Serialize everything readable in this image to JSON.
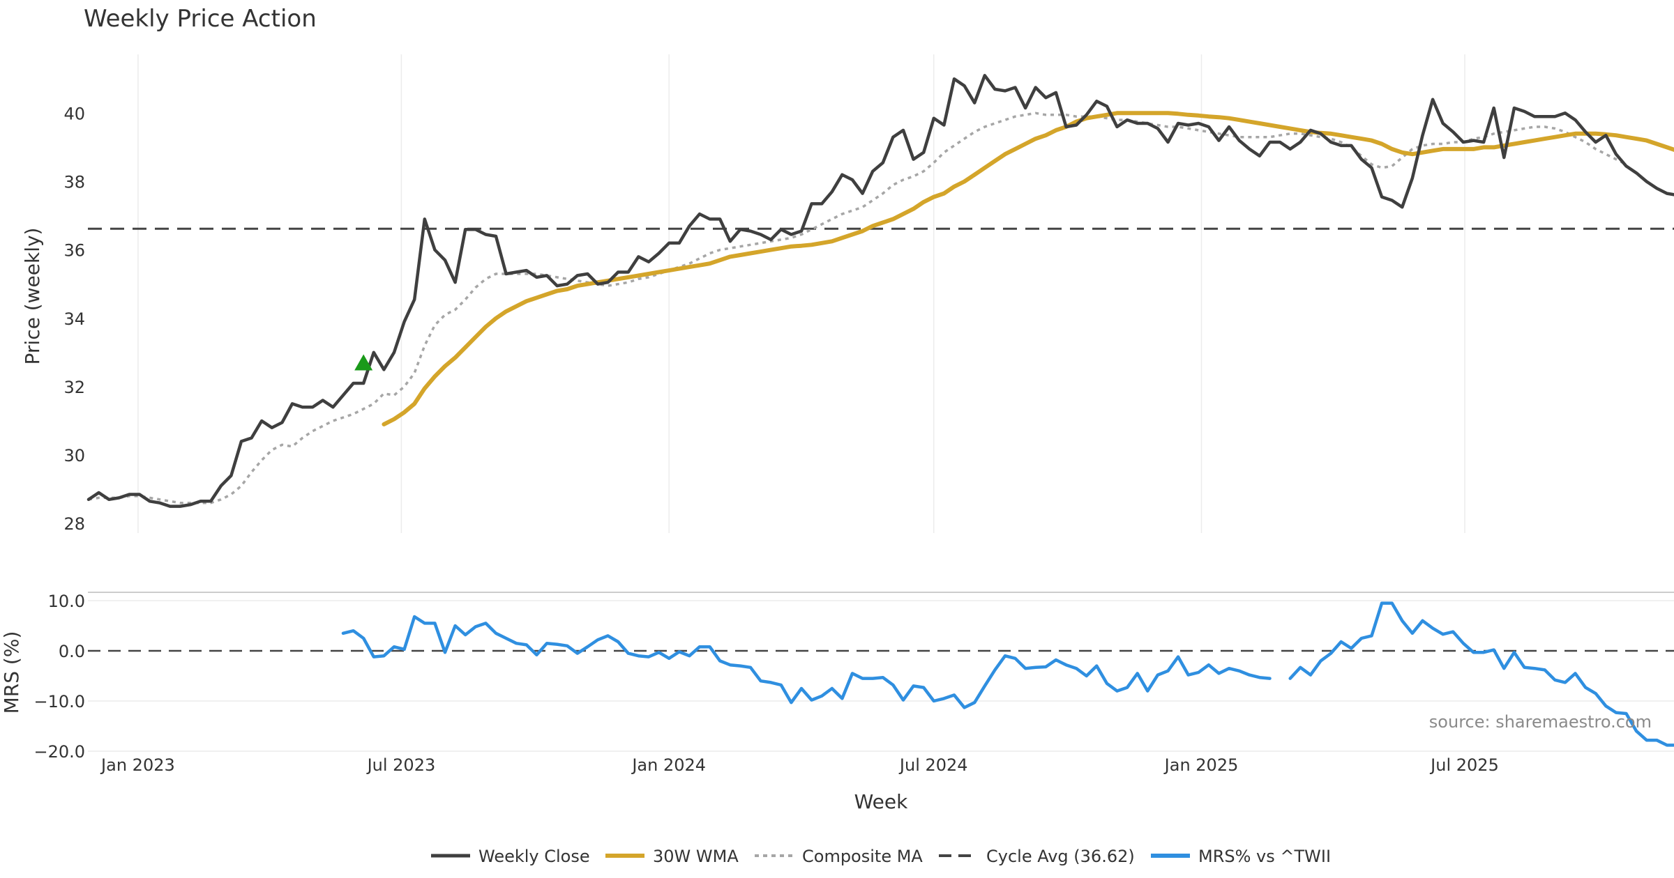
{
  "chart_data": [
    {
      "type": "line",
      "title": "Weekly Price Action",
      "ylabel": "Price (weekly)",
      "xlabel": "",
      "ylim": [
        27.8,
        41.8
      ],
      "yticks": [
        28,
        30,
        32,
        34,
        36,
        38,
        40
      ],
      "x_start": "2022-11-28",
      "grid": "vertical",
      "reference_line": {
        "name": "Cycle Avg (36.62)",
        "value": 36.62
      },
      "marker": {
        "label": "buy-signal",
        "date": "2023-06-05",
        "value": 32.7,
        "color": "#1a9a1a"
      },
      "series": [
        {
          "name": "Weekly Close",
          "color": "#3f3f3f",
          "values": [
            28.7,
            28.9,
            28.7,
            28.75,
            28.85,
            28.85,
            28.65,
            28.6,
            28.5,
            28.5,
            28.55,
            28.65,
            28.65,
            29.1,
            29.4,
            30.4,
            30.5,
            31.0,
            30.8,
            30.95,
            31.5,
            31.4,
            31.4,
            31.6,
            31.4,
            31.75,
            32.1,
            32.1,
            33.0,
            32.5,
            33.0,
            33.9,
            34.55,
            36.9,
            36.0,
            35.7,
            35.05,
            36.6,
            36.6,
            36.45,
            36.4,
            35.3,
            35.35,
            35.4,
            35.2,
            35.25,
            34.95,
            35.0,
            35.25,
            35.3,
            35.0,
            35.05,
            35.35,
            35.35,
            35.8,
            35.65,
            35.9,
            36.2,
            36.2,
            36.7,
            37.05,
            36.9,
            36.9,
            36.25,
            36.6,
            36.55,
            36.45,
            36.3,
            36.6,
            36.45,
            36.55,
            37.35,
            37.35,
            37.7,
            38.2,
            38.05,
            37.65,
            38.3,
            38.55,
            39.3,
            39.5,
            38.65,
            38.85,
            39.85,
            39.65,
            41.0,
            40.8,
            40.3,
            41.1,
            40.7,
            40.65,
            40.75,
            40.15,
            40.75,
            40.45,
            40.6,
            39.6,
            39.65,
            39.95,
            40.35,
            40.2,
            39.6,
            39.8,
            39.7,
            39.7,
            39.55,
            39.15,
            39.7,
            39.65,
            39.7,
            39.6,
            39.2,
            39.6,
            39.2,
            38.95,
            38.75,
            39.15,
            39.15,
            38.95,
            39.15,
            39.5,
            39.4,
            39.15,
            39.05,
            39.05,
            38.65,
            38.4,
            37.55,
            37.45,
            37.25,
            38.1,
            39.35,
            40.4,
            39.7,
            39.45,
            39.15,
            39.2,
            39.15,
            40.15,
            38.7,
            40.15,
            40.05,
            39.9,
            39.9,
            39.9,
            40.0,
            39.8,
            39.45,
            39.15,
            39.35,
            38.8,
            38.45,
            38.25,
            38.0,
            37.8,
            37.65,
            37.6,
            37.55
          ]
        },
        {
          "name": "30W WMA",
          "color": "#d4a52a",
          "start_index": 29,
          "values": [
            30.9,
            31.05,
            31.25,
            31.5,
            31.95,
            32.3,
            32.6,
            32.85,
            33.15,
            33.45,
            33.75,
            34.0,
            34.2,
            34.35,
            34.5,
            34.6,
            34.7,
            34.8,
            34.85,
            34.95,
            35.0,
            35.05,
            35.1,
            35.15,
            35.2,
            35.25,
            35.3,
            35.35,
            35.4,
            35.45,
            35.5,
            35.55,
            35.6,
            35.7,
            35.8,
            35.85,
            35.9,
            35.95,
            36.0,
            36.05,
            36.1,
            36.12,
            36.15,
            36.2,
            36.25,
            36.35,
            36.45,
            36.55,
            36.7,
            36.8,
            36.9,
            37.05,
            37.2,
            37.4,
            37.55,
            37.65,
            37.85,
            38.0,
            38.2,
            38.4,
            38.6,
            38.8,
            38.95,
            39.1,
            39.25,
            39.35,
            39.5,
            39.6,
            39.75,
            39.85,
            39.9,
            39.95,
            40.0,
            40.0,
            40.0,
            40.0,
            40.0,
            40.0,
            39.98,
            39.95,
            39.93,
            39.9,
            39.88,
            39.85,
            39.8,
            39.75,
            39.7,
            39.65,
            39.6,
            39.55,
            39.5,
            39.45,
            39.42,
            39.4,
            39.35,
            39.3,
            39.25,
            39.2,
            39.1,
            38.95,
            38.85,
            38.8,
            38.85,
            38.9,
            38.95,
            38.95,
            38.95,
            38.95,
            39.0,
            39.0,
            39.05,
            39.1,
            39.15,
            39.2,
            39.25,
            39.3,
            39.35,
            39.4,
            39.4,
            39.4,
            39.38,
            39.35,
            39.3,
            39.25,
            39.2,
            39.1,
            39.0,
            38.9
          ]
        },
        {
          "name": "Composite MA",
          "color": "#a6a6a6",
          "values": [
            28.7,
            28.75,
            28.75,
            28.75,
            28.8,
            28.8,
            28.75,
            28.7,
            28.65,
            28.6,
            28.6,
            28.6,
            28.6,
            28.7,
            28.85,
            29.1,
            29.5,
            29.85,
            30.15,
            30.3,
            30.25,
            30.5,
            30.7,
            30.85,
            31.0,
            31.1,
            31.2,
            31.35,
            31.5,
            31.8,
            31.75,
            32.0,
            32.4,
            33.2,
            33.8,
            34.1,
            34.25,
            34.55,
            34.9,
            35.15,
            35.3,
            35.3,
            35.3,
            35.3,
            35.3,
            35.25,
            35.2,
            35.15,
            35.1,
            35.05,
            35.0,
            34.95,
            35.0,
            35.05,
            35.15,
            35.2,
            35.3,
            35.4,
            35.5,
            35.6,
            35.75,
            35.9,
            36.0,
            36.05,
            36.1,
            36.15,
            36.2,
            36.25,
            36.3,
            36.35,
            36.45,
            36.6,
            36.75,
            36.9,
            37.05,
            37.15,
            37.25,
            37.45,
            37.65,
            37.9,
            38.05,
            38.15,
            38.3,
            38.55,
            38.85,
            39.05,
            39.25,
            39.45,
            39.6,
            39.7,
            39.8,
            39.9,
            39.95,
            40.0,
            39.95,
            39.95,
            39.95,
            39.9,
            39.9,
            39.9,
            39.85,
            39.8,
            39.8,
            39.75,
            39.7,
            39.65,
            39.6,
            39.6,
            39.55,
            39.5,
            39.45,
            39.4,
            39.35,
            39.3,
            39.3,
            39.3,
            39.3,
            39.35,
            39.4,
            39.4,
            39.35,
            39.3,
            39.25,
            39.15,
            39.0,
            38.75,
            38.5,
            38.4,
            38.45,
            38.7,
            38.95,
            39.05,
            39.1,
            39.1,
            39.15,
            39.15,
            39.25,
            39.3,
            39.4,
            39.45,
            39.5,
            39.55,
            39.6,
            39.6,
            39.55,
            39.45,
            39.3,
            39.15,
            38.95,
            38.8,
            38.65,
            38.5
          ]
        }
      ]
    },
    {
      "type": "line",
      "title": "",
      "ylabel": "MRS (%)",
      "xlabel": "Week",
      "ylim": [
        -20,
        10
      ],
      "yticks": [
        10.0,
        0.0,
        -10.0,
        -20.0
      ],
      "x_start": "2023-05-22",
      "x_ticks": [
        "Jan 2023",
        "Jul 2023",
        "Jan 2024",
        "Jul 2024",
        "Jan 2025",
        "Jul 2025"
      ],
      "annotation": "source: sharemaestro.com",
      "reference_line": {
        "value": 0.0
      },
      "series": [
        {
          "name": "MRS% vs ^TWII",
          "color": "#2f8fe0",
          "values": [
            3.5,
            4.0,
            2.5,
            -1.2,
            -1.0,
            0.8,
            0.3,
            6.8,
            5.5,
            5.5,
            -0.3,
            5.0,
            3.2,
            4.8,
            5.5,
            3.5,
            2.5,
            1.5,
            1.2,
            -0.8,
            1.5,
            1.3,
            1.0,
            -0.5,
            0.8,
            2.2,
            3.0,
            1.8,
            -0.5,
            -1.0,
            -1.2,
            -0.3,
            -1.5,
            -0.2,
            -1.0,
            0.8,
            0.8,
            -2.0,
            -2.8,
            -3.0,
            -3.3,
            -6.0,
            -6.3,
            -6.8,
            -10.3,
            -7.5,
            -9.8,
            -9.0,
            -7.5,
            -9.5,
            -4.5,
            -5.5,
            -5.5,
            -5.3,
            -6.8,
            -9.8,
            -7.0,
            -7.3,
            -10.0,
            -9.5,
            -8.8,
            -11.3,
            -10.3,
            -7.0,
            -3.8,
            -1.0,
            -1.5,
            -3.5,
            -3.3,
            -3.2,
            -1.8,
            -2.8,
            -3.5,
            -5.0,
            -3.0,
            -6.5,
            -8.0,
            -7.3,
            -4.5,
            -8.0,
            -4.8,
            -4.0,
            -1.2,
            -4.8,
            -4.3,
            -2.8,
            -4.5,
            -3.5,
            -4.0,
            -4.8,
            -5.3,
            -5.5,
            null,
            -5.5,
            -3.3,
            -4.8,
            -2.0,
            -0.5,
            1.8,
            0.5,
            2.5,
            3.0,
            9.5,
            9.5,
            6.0,
            3.5,
            6.0,
            4.5,
            3.3,
            3.8,
            1.5,
            -0.3,
            -0.3,
            0.2,
            -3.5,
            -0.3,
            -3.3,
            -3.5,
            -3.8,
            -5.8,
            -6.3,
            -4.5,
            -7.3,
            -8.5,
            -11.0,
            -12.3,
            -12.5,
            -16.0,
            -17.8,
            -17.8,
            -18.8,
            -18.8
          ]
        }
      ]
    }
  ],
  "legend": [
    {
      "label": "Weekly Close",
      "style": "solid",
      "color": "#3f3f3f"
    },
    {
      "label": "30W WMA",
      "style": "solid-thick",
      "color": "#d4a52a"
    },
    {
      "label": "Composite MA",
      "style": "dotted",
      "color": "#a6a6a6"
    },
    {
      "label": "Cycle Avg (36.62)",
      "style": "dashed",
      "color": "#444444"
    },
    {
      "label": "MRS% vs ^TWII",
      "style": "solid-thick",
      "color": "#2f8fe0"
    }
  ]
}
